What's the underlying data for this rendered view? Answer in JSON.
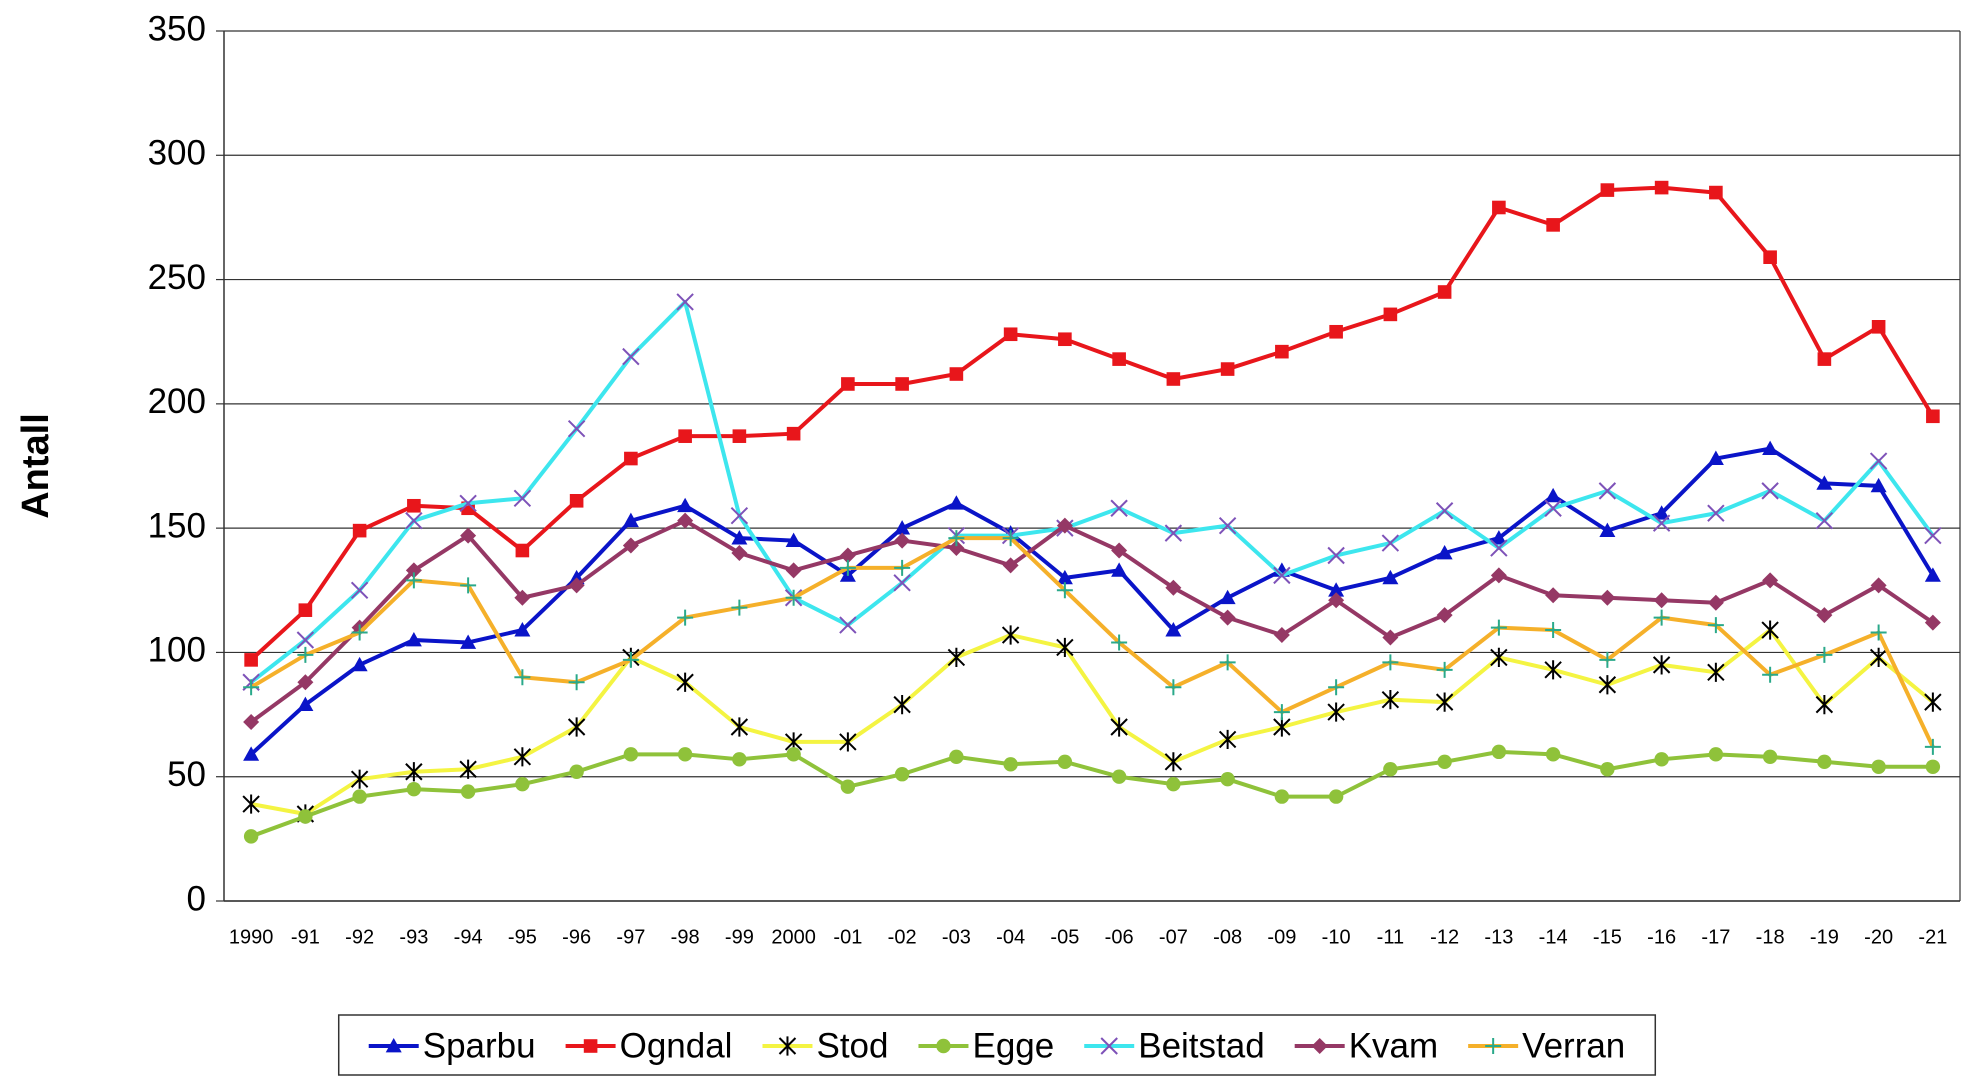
{
  "chart_data": {
    "type": "line",
    "y_label": "Antall",
    "categories": [
      "1990",
      "-91",
      "-92",
      "-93",
      "-94",
      "-95",
      "-96",
      "-97",
      "-98",
      "-99",
      "2000",
      "-01",
      "-02",
      "-03",
      "-04",
      "-05",
      "-06",
      "-07",
      "-08",
      "-09",
      "-10",
      "-11",
      "-12",
      "-13",
      "-14",
      "-15",
      "-16",
      "-17",
      "-18",
      "-19",
      "-20",
      "-21"
    ],
    "ylim": [
      0,
      350
    ],
    "yticks": [
      0,
      50,
      100,
      150,
      200,
      250,
      300,
      350
    ],
    "grid": true,
    "legend": "bottom",
    "series": [
      {
        "name": "Sparbu",
        "color": "#0a14c8",
        "marker": "triangle",
        "marker_color": "#0a14c8",
        "values": [
          59,
          79,
          95,
          105,
          104,
          109,
          130,
          153,
          159,
          146,
          145,
          131,
          150,
          160,
          148,
          130,
          133,
          109,
          122,
          133,
          125,
          130,
          140,
          146,
          163,
          149,
          156,
          178,
          182,
          168,
          167,
          131
        ]
      },
      {
        "name": "Ogndal",
        "color": "#e8161b",
        "marker": "square",
        "marker_color": "#e8161b",
        "values": [
          97,
          117,
          149,
          159,
          158,
          141,
          161,
          178,
          187,
          187,
          188,
          208,
          208,
          212,
          228,
          226,
          218,
          210,
          214,
          221,
          229,
          236,
          245,
          279,
          272,
          286,
          287,
          285,
          259,
          218,
          231,
          195
        ]
      },
      {
        "name": "Stod",
        "color": "#f4f442",
        "marker": "asterisk",
        "marker_color": "#000000",
        "values": [
          39,
          35,
          49,
          52,
          53,
          58,
          70,
          98,
          88,
          70,
          64,
          64,
          79,
          98,
          107,
          102,
          70,
          56,
          65,
          70,
          76,
          81,
          80,
          98,
          93,
          87,
          95,
          92,
          109,
          79,
          98,
          80
        ]
      },
      {
        "name": "Egge",
        "color": "#8fc23a",
        "marker": "circle",
        "marker_color": "#8fc23a",
        "values": [
          26,
          34,
          42,
          45,
          44,
          47,
          52,
          59,
          59,
          57,
          59,
          46,
          51,
          58,
          55,
          56,
          50,
          47,
          49,
          42,
          42,
          53,
          56,
          60,
          59,
          53,
          57,
          59,
          58,
          56,
          54,
          54
        ]
      },
      {
        "name": "Beitstad",
        "color": "#3de6ee",
        "marker": "x",
        "marker_color": "#7e52b8",
        "values": [
          88,
          105,
          125,
          153,
          160,
          162,
          190,
          219,
          241,
          155,
          122,
          111,
          128,
          147,
          147,
          150,
          158,
          148,
          151,
          131,
          139,
          144,
          157,
          142,
          158,
          165,
          152,
          156,
          165,
          153,
          177,
          147
        ]
      },
      {
        "name": "Kvam",
        "color": "#953865",
        "marker": "diamond",
        "marker_color": "#953865",
        "values": [
          72,
          88,
          110,
          133,
          147,
          122,
          127,
          143,
          153,
          140,
          133,
          139,
          145,
          142,
          135,
          151,
          141,
          126,
          114,
          107,
          121,
          106,
          115,
          131,
          123,
          122,
          121,
          120,
          129,
          115,
          127,
          112
        ]
      },
      {
        "name": "Verran",
        "color": "#f5b02a",
        "marker": "plus",
        "marker_color": "#2aa98a",
        "values": [
          86,
          99,
          108,
          129,
          127,
          90,
          88,
          97,
          114,
          118,
          122,
          134,
          134,
          146,
          146,
          125,
          104,
          86,
          96,
          76,
          86,
          96,
          93,
          110,
          109,
          97,
          114,
          111,
          91,
          99,
          108,
          62
        ]
      }
    ]
  }
}
